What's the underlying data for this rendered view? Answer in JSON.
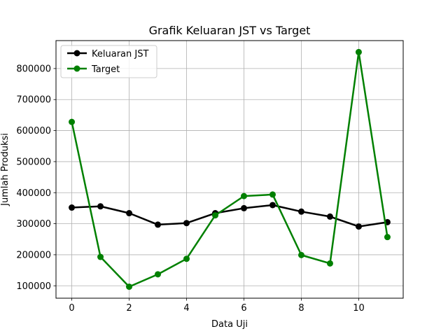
{
  "chart_data": {
    "type": "line",
    "title": "Grafik Keluaran JST vs Target",
    "xlabel": "Data Uji",
    "ylabel": "Jumlah Produksi",
    "xlim": [
      -0.55,
      11.55
    ],
    "ylim": [
      60000,
      890000
    ],
    "xticks": [
      0,
      2,
      4,
      6,
      8,
      10
    ],
    "yticks": [
      100000,
      200000,
      300000,
      400000,
      500000,
      600000,
      700000,
      800000
    ],
    "grid": true,
    "legend_position": "top-left",
    "x": [
      0,
      1,
      2,
      3,
      4,
      5,
      6,
      7,
      8,
      9,
      10,
      11
    ],
    "series": [
      {
        "name": "Keluaran JST",
        "color": "#000000",
        "marker": "circle",
        "values": [
          352000,
          356000,
          334000,
          297000,
          302000,
          334000,
          350000,
          360000,
          339000,
          323000,
          291000,
          305000
        ]
      },
      {
        "name": "Target",
        "color": "#008000",
        "marker": "circle",
        "values": [
          628000,
          193000,
          97000,
          137000,
          187000,
          327000,
          389000,
          394000,
          199000,
          172000,
          853000,
          257000
        ]
      }
    ]
  }
}
